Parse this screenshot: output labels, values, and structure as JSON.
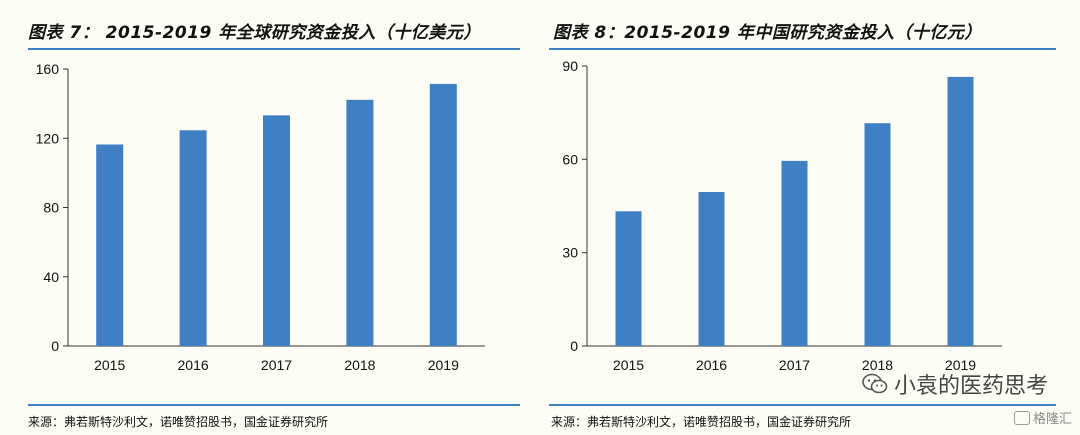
{
  "panels": [
    {
      "title": "图表 7： 2015-2019 年全球研究资金投入（十亿美元）",
      "source": "来源：弗若斯特沙利文，诺唯赞招股书，国金证券研究所"
    },
    {
      "title": "图表 8：2015-2019 年中国研究资金投入（十亿元）",
      "source": "来源：弗若斯特沙利文，诺唯赞招股书，国金证券研究所"
    }
  ],
  "watermark": {
    "text": "小袁的医药思考",
    "icon": "wechat-icon"
  },
  "brand": {
    "text": "格隆汇",
    "icon": "brand-logo-icon"
  },
  "colors": {
    "bar": "#3f7fc4",
    "rule": "#3f7fc4",
    "axis": "#333333"
  },
  "chart_data": [
    {
      "type": "bar",
      "title": "2015-2019 年全球研究资金投入（十亿美元）",
      "categories": [
        "2015",
        "2016",
        "2017",
        "2018",
        "2019"
      ],
      "values": [
        116.4,
        124.6,
        133.2,
        142.2,
        151.4
      ],
      "ylim": [
        0,
        160
      ],
      "yticks": [
        0,
        40,
        80,
        120,
        160
      ],
      "xlabel": "",
      "ylabel": "",
      "grid": false
    },
    {
      "type": "bar",
      "title": "2015-2019 年中国研究资金投入（十亿元）",
      "categories": [
        "2015",
        "2016",
        "2017",
        "2018",
        "2019"
      ],
      "values": [
        43.3,
        49.5,
        59.5,
        71.6,
        86.5
      ],
      "ylim": [
        0,
        90
      ],
      "yticks": [
        0,
        30,
        60,
        90
      ],
      "xlabel": "",
      "ylabel": "",
      "grid": false
    }
  ]
}
